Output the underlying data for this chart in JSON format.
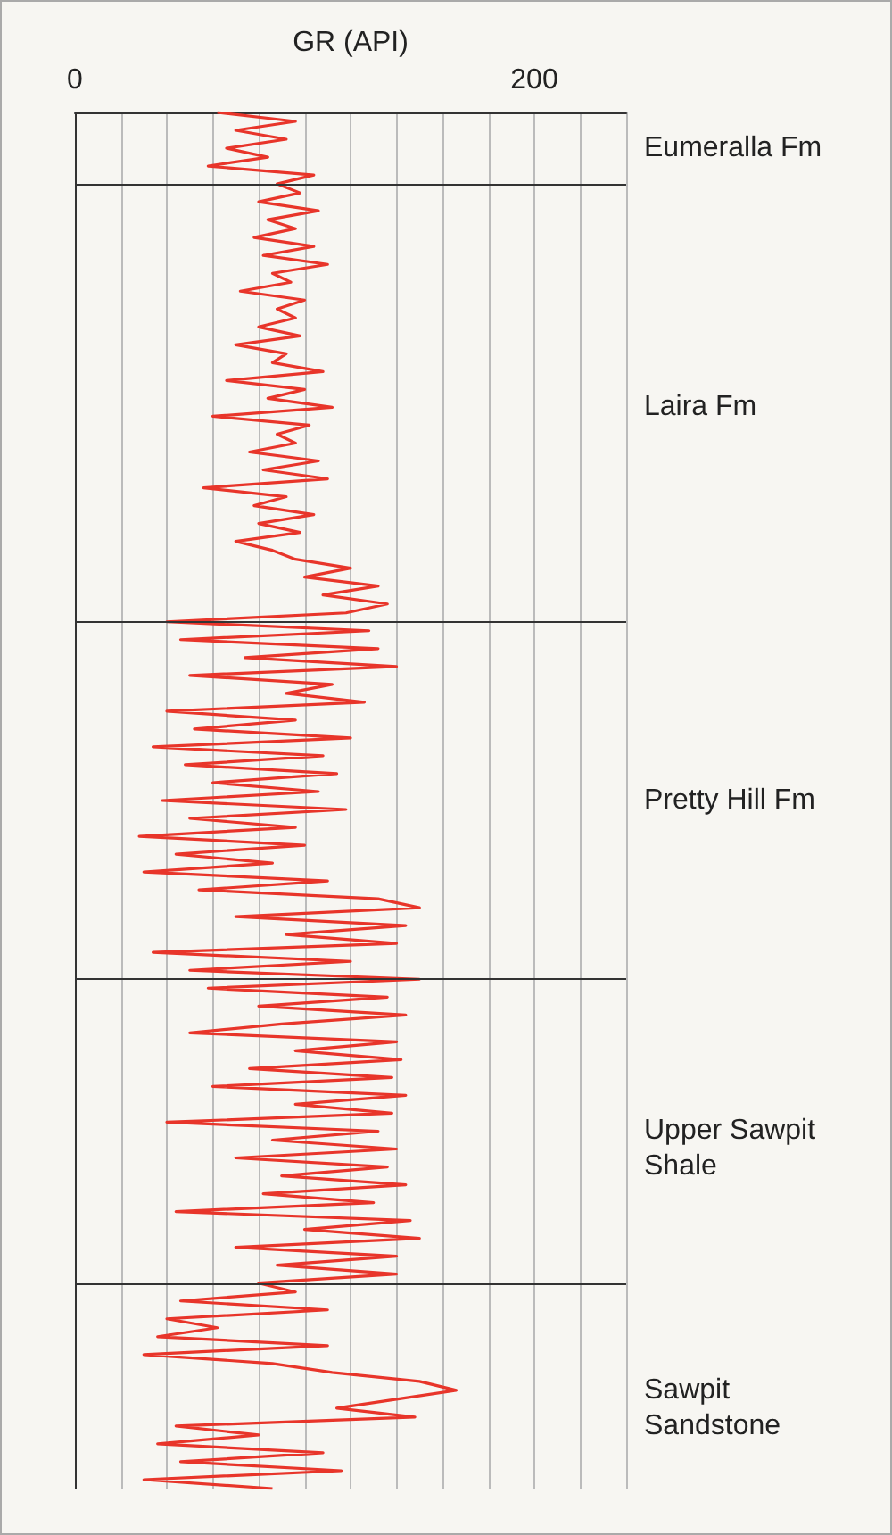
{
  "chart_data": {
    "type": "line",
    "orientation": "horizontal",
    "xlabel": "GR (API)",
    "categories": [
      null,
      null,
      null,
      null,
      null,
      null,
      null,
      null,
      null,
      null,
      null,
      null,
      null,
      null,
      null,
      null,
      null,
      null,
      null,
      null,
      null,
      null,
      null,
      null,
      null,
      null,
      null,
      null,
      null,
      null,
      null,
      null,
      null,
      null,
      null,
      null,
      null,
      null,
      null,
      null,
      null,
      null,
      null,
      null,
      null,
      null,
      null,
      null,
      null,
      null,
      null,
      null,
      null,
      null,
      null,
      null,
      null,
      null,
      null,
      null,
      null,
      null,
      null,
      null,
      null,
      null,
      null,
      null,
      null,
      null,
      null,
      null,
      null,
      null,
      null,
      null,
      null,
      null,
      null,
      null,
      null,
      null,
      null,
      null,
      null,
      null,
      null,
      null,
      null,
      null,
      null,
      null,
      null,
      null,
      null,
      null,
      null,
      null,
      null,
      null,
      null,
      null,
      null,
      null,
      null,
      null,
      null,
      null,
      null,
      null,
      null,
      null,
      null,
      null,
      null,
      null,
      null,
      null,
      null,
      null,
      null,
      null,
      null,
      null,
      null,
      null,
      null,
      null,
      null,
      null,
      null,
      null,
      null,
      null,
      null,
      null,
      null,
      null,
      null,
      null,
      null,
      null,
      null,
      null,
      null,
      null,
      null,
      null,
      null,
      null,
      null,
      null,
      null,
      null,
      null
    ],
    "series": [
      {
        "color": "#e8352a",
        "values": [
          62,
          96,
          70,
          92,
          66,
          84,
          58,
          104,
          88,
          98,
          80,
          106,
          84,
          96,
          78,
          104,
          82,
          110,
          86,
          94,
          72,
          100,
          88,
          96,
          80,
          98,
          70,
          92,
          86,
          108,
          66,
          100,
          84,
          112,
          60,
          102,
          88,
          96,
          76,
          106,
          82,
          110,
          56,
          92,
          78,
          104,
          80,
          98,
          70,
          86,
          96,
          120,
          100,
          132,
          108,
          136,
          118,
          40,
          128,
          46,
          132,
          74,
          140,
          50,
          112,
          92,
          126,
          40,
          96,
          52,
          120,
          34,
          108,
          48,
          114,
          60,
          106,
          38,
          118,
          50,
          96,
          28,
          100,
          44,
          86,
          30,
          110,
          54,
          132,
          150,
          70,
          144,
          92,
          140,
          34,
          120,
          50,
          150,
          58,
          136,
          80,
          144,
          90,
          50,
          140,
          96,
          142,
          76,
          138,
          60,
          144,
          96,
          138,
          40,
          132,
          86,
          140,
          70,
          136,
          90,
          144,
          82,
          130,
          44,
          146,
          100,
          150,
          70,
          140,
          88,
          140,
          80,
          96,
          46,
          110,
          40,
          62,
          36,
          110,
          30,
          86,
          112,
          150,
          166,
          140,
          114,
          148,
          44,
          80,
          36,
          108,
          46,
          116,
          30,
          86
        ]
      }
    ],
    "xlim": [
      0,
      240
    ],
    "xticks": [
      0,
      {
        "value": 20,
        "label": null
      },
      {
        "value": 40,
        "label": null
      },
      {
        "value": 60,
        "label": null
      },
      {
        "value": 80,
        "label": null
      },
      {
        "value": 100,
        "label": null
      },
      {
        "value": 120,
        "label": null
      },
      {
        "value": 140,
        "label": null
      },
      {
        "value": 160,
        "label": null
      },
      {
        "value": 180,
        "label": null
      },
      200,
      {
        "value": 220,
        "label": null
      },
      {
        "value": 240,
        "label": null
      }
    ],
    "grid": "x",
    "line_style": "solid",
    "annotations": [
      "Eumeralla Fm",
      "Laira Fm",
      "Pretty Hill Fm",
      "Upper Sawpit Shale",
      "Sawpit Sandstone"
    ]
  }
}
